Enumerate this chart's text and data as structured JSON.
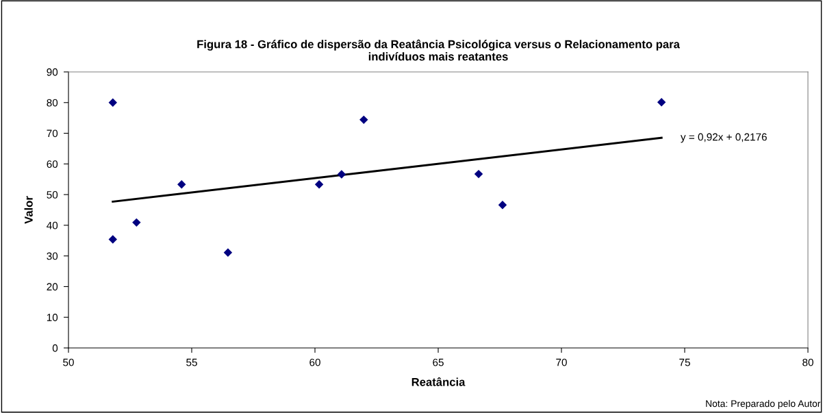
{
  "chart_data": {
    "type": "scatter",
    "title": "Figura 18 - Gráfico de dispersão da Reatância Psicológica versus o Relacionamento para\nindivíduos mais reatantes",
    "xlabel": "Reatância",
    "ylabel": "Valor",
    "series": [
      {
        "color": "#000080",
        "marker": "diamond",
        "x": [
          51.8,
          51.8,
          52.76,
          54.59,
          56.47,
          60.17,
          61.08,
          61.98,
          66.64,
          67.61,
          74.06
        ],
        "values": [
          80.0,
          35.4,
          40.9,
          53.3,
          31.1,
          53.3,
          56.6,
          74.4,
          56.7,
          46.6,
          80.1
        ]
      },
      {
        "type": "line",
        "color": "#000000",
        "marker": "none",
        "line_style": "solid",
        "x": [
          51.8,
          74.06
        ],
        "values": [
          47.7,
          68.5
        ]
      }
    ],
    "annotations": [
      {
        "text": "y = 0,92x + 0,2176",
        "x": 74.06,
        "y": 68.5
      },
      "Nota: Preparado pelo Autor"
    ],
    "xlim": [
      50,
      80
    ],
    "xticks": [
      50,
      55,
      60,
      65,
      70,
      75,
      80
    ],
    "ylim": [
      0,
      90
    ],
    "yticks": [
      0,
      10,
      20,
      30,
      40,
      50,
      60,
      70,
      80,
      90
    ],
    "grid": false,
    "legend": false
  }
}
